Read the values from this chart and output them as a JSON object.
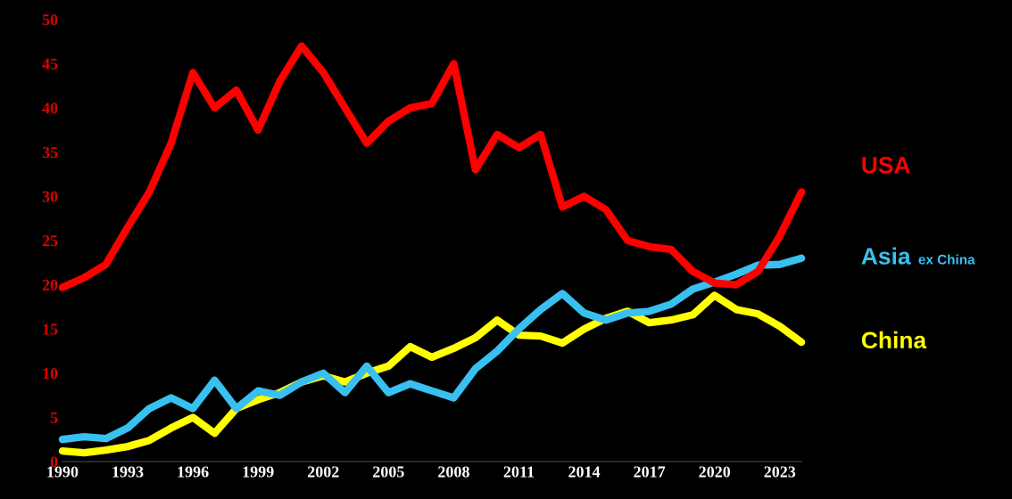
{
  "chart_data": {
    "type": "line",
    "x": [
      1990,
      1991,
      1992,
      1993,
      1994,
      1995,
      1996,
      1997,
      1998,
      1999,
      2000,
      2001,
      2002,
      2003,
      2004,
      2005,
      2006,
      2007,
      2008,
      2009,
      2010,
      2011,
      2012,
      2013,
      2014,
      2015,
      2016,
      2017,
      2018,
      2019,
      2020,
      2021,
      2022,
      2023,
      2024
    ],
    "series": [
      {
        "name": "USA",
        "color": "#ff0000",
        "values": [
          19.7,
          20.8,
          22.3,
          26.5,
          30.5,
          36,
          44,
          40,
          42,
          37.5,
          43,
          47,
          44,
          40,
          36,
          38.5,
          40,
          40.5,
          45,
          33,
          37,
          35.5,
          37,
          28.8,
          30,
          28.5,
          25,
          24.3,
          24,
          21.5,
          20.2,
          20,
          21.5,
          25.5,
          30.5
        ]
      },
      {
        "name": "Asia ex China",
        "color": "#38c0f0",
        "values": [
          2.5,
          2.8,
          2.6,
          3.8,
          6,
          7.2,
          6,
          9.2,
          6,
          8,
          7.5,
          9,
          10,
          7.8,
          10.8,
          7.8,
          8.8,
          8,
          7.2,
          10.5,
          12.5,
          15,
          17.2,
          19,
          16.8,
          16,
          16.8,
          17,
          17.8,
          19.5,
          20.3,
          21.2,
          22.2,
          22.3,
          23
        ]
      },
      {
        "name": "China",
        "color": "#ffff00",
        "values": [
          1.2,
          1,
          1.3,
          1.7,
          2.4,
          3.8,
          5,
          3.2,
          6,
          7,
          7.8,
          9,
          9.7,
          9,
          10,
          10.8,
          13,
          11.8,
          12.8,
          14,
          16,
          14.3,
          14.2,
          13.4,
          15,
          16.2,
          17,
          15.7,
          16,
          16.6,
          18.8,
          17.2,
          16.7,
          15.3,
          13.5
        ]
      }
    ],
    "xlim": [
      1990,
      2024
    ],
    "xticks": [
      1990,
      1993,
      1996,
      1999,
      2002,
      2005,
      2008,
      2011,
      2014,
      2017,
      2020,
      2023
    ],
    "ylim": [
      0,
      50
    ],
    "yticks": [
      0,
      5,
      10,
      15,
      20,
      25,
      30,
      35,
      40,
      45,
      50
    ],
    "grid": false,
    "legend": false,
    "marker": "none",
    "line_style": "solid"
  }
}
